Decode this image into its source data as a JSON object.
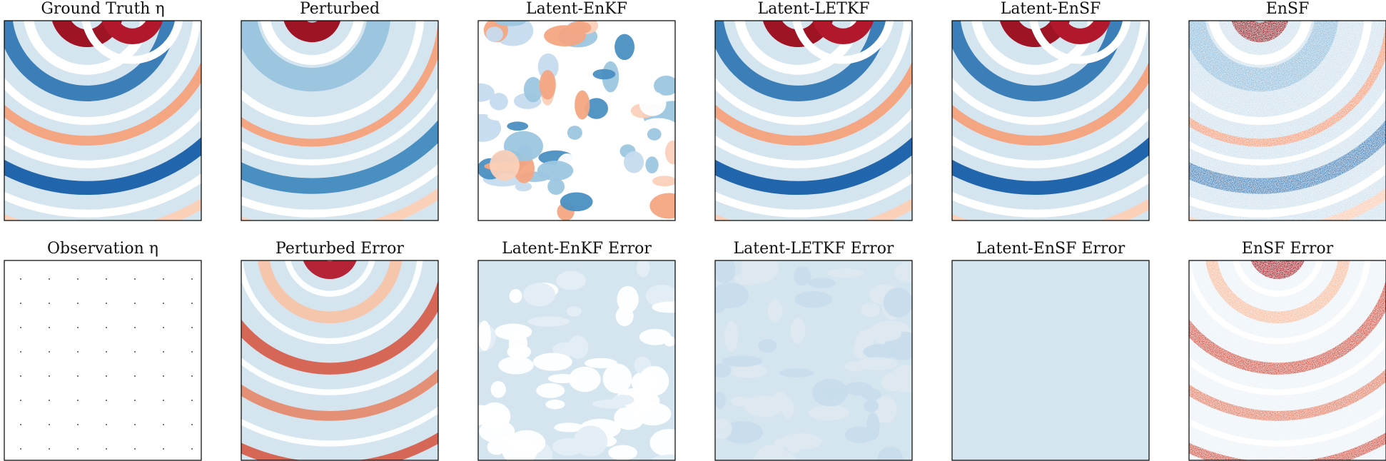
{
  "panels": [
    {
      "title": "Ground Truth η"
    },
    {
      "title": "Perturbed"
    },
    {
      "title": "Latent-EnKF"
    },
    {
      "title": "Latent-LETKF"
    },
    {
      "title": "Latent-EnSF"
    },
    {
      "title": "EnSF"
    },
    {
      "title": "Observation η"
    },
    {
      "title": "Perturbed Error"
    },
    {
      "title": "Latent-EnKF Error"
    },
    {
      "title": "Latent-LETKF Error"
    },
    {
      "title": "Latent-EnSF Error"
    },
    {
      "title": "EnSF Error"
    }
  ]
}
